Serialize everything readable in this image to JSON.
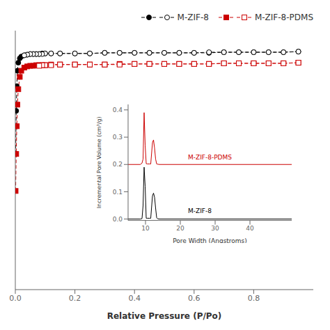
{
  "chart_data": [
    {
      "type": "line",
      "xlabel": "Relative Pressure (P/Po)",
      "xlim": [
        0,
        1.0
      ],
      "xticks": [
        {
          "value": 0,
          "label": "0.0"
        },
        0.2,
        0.4,
        0.6,
        0.8
      ],
      "ylim": [
        0,
        420
      ],
      "tick_labels": "x",
      "legend": "upper right",
      "series": [
        {
          "name": "M-ZIF-8",
          "color": "#000000",
          "marker": "circle",
          "line_style": "dashed",
          "x": [
            0.001,
            0.003,
            0.005,
            0.007,
            0.01,
            0.015,
            0.02,
            0.03,
            0.04,
            0.05,
            0.06,
            0.07,
            0.08,
            0.09,
            0.1,
            0.12,
            0.15,
            0.2,
            0.25,
            0.3,
            0.35,
            0.4,
            0.45,
            0.5,
            0.55,
            0.6,
            0.65,
            0.7,
            0.75,
            0.8,
            0.85,
            0.9,
            0.95
          ],
          "values": [
            220,
            290,
            330,
            355,
            368,
            375,
            378,
            380,
            381,
            382,
            382,
            382,
            382,
            383,
            383,
            383,
            383,
            383,
            383,
            384,
            384,
            384,
            384,
            384,
            384,
            384,
            384,
            385,
            385,
            385,
            385,
            385,
            386
          ]
        },
        {
          "name": "M-ZIF-8",
          "color": "#000000",
          "marker": "open-circle",
          "line_style": "dashed",
          "x": [
            0.95,
            0.9,
            0.85,
            0.8,
            0.75,
            0.7,
            0.65,
            0.6,
            0.55,
            0.5,
            0.45,
            0.4,
            0.35,
            0.3,
            0.25,
            0.2,
            0.15,
            0.12,
            0.1,
            0.09,
            0.08,
            0.07,
            0.06,
            0.05,
            0.04,
            0.03
          ],
          "values": [
            386,
            385,
            385,
            385,
            385,
            385,
            385,
            384,
            384,
            384,
            384,
            384,
            384,
            384,
            383,
            383,
            383,
            383,
            383,
            382,
            382,
            382,
            382,
            382,
            381,
            380
          ]
        },
        {
          "name": "M-ZIF-8-PDMS",
          "color": "#cc0000",
          "marker": "square",
          "line_style": "dashed",
          "x": [
            0.001,
            0.003,
            0.005,
            0.007,
            0.01,
            0.015,
            0.02,
            0.03,
            0.04,
            0.05,
            0.06,
            0.07,
            0.08,
            0.09,
            0.1,
            0.12,
            0.15,
            0.2,
            0.25,
            0.3,
            0.35,
            0.4,
            0.45,
            0.5,
            0.55,
            0.6,
            0.65,
            0.7,
            0.75,
            0.8,
            0.85,
            0.9,
            0.95
          ],
          "values": [
            160,
            220,
            265,
            300,
            325,
            345,
            355,
            360,
            362,
            363,
            363,
            364,
            364,
            364,
            364,
            365,
            365,
            365,
            365,
            365,
            366,
            366,
            366,
            366,
            366,
            366,
            366,
            367,
            367,
            367,
            367,
            367,
            368
          ]
        },
        {
          "name": "M-ZIF-8-PDMS",
          "color": "#cc0000",
          "marker": "open-square",
          "line_style": "dashed",
          "x": [
            0.95,
            0.9,
            0.85,
            0.8,
            0.75,
            0.7,
            0.65,
            0.6,
            0.55,
            0.5,
            0.45,
            0.4,
            0.35,
            0.3,
            0.25,
            0.2,
            0.15,
            0.12,
            0.1,
            0.09,
            0.08
          ],
          "values": [
            368,
            367,
            367,
            367,
            367,
            367,
            366,
            366,
            366,
            366,
            366,
            366,
            365,
            365,
            365,
            365,
            365,
            364,
            364,
            364,
            363
          ]
        }
      ]
    },
    {
      "type": "line",
      "xlabel": "Pore Width (Angstroms)",
      "ylabel": "Incremental Pore Volume (cm³/g)",
      "xlim": [
        5,
        52
      ],
      "ylim": [
        -0.005,
        0.42
      ],
      "xticks": [
        10,
        20,
        30,
        40
      ],
      "yticks": [
        {
          "value": 0,
          "label": "0.0"
        },
        0.1,
        0.2,
        0.3,
        0.4
      ],
      "series": [
        {
          "color": "#000000",
          "line_style": "solid",
          "x": [
            5.0,
            8.5,
            9.0,
            9.3,
            9.6,
            9.9,
            10.2,
            10.5,
            10.8,
            11.1,
            11.5,
            12.0,
            12.3,
            12.6,
            12.9,
            13.2,
            13.5,
            14.0,
            15.0,
            16.0,
            18.0,
            52.0
          ],
          "values": [
            0.0,
            0.0,
            0.002,
            0.05,
            0.19,
            0.12,
            0.003,
            0.003,
            0.003,
            0.003,
            0.003,
            0.085,
            0.095,
            0.08,
            0.04,
            0.005,
            0.001,
            0.0,
            0.0,
            0.0,
            0.0,
            0.0
          ]
        },
        {
          "color": "#cc0000",
          "line_style": "solid",
          "x": [
            5.0,
            8.5,
            9.0,
            9.3,
            9.6,
            9.9,
            10.2,
            10.5,
            10.8,
            11.1,
            11.5,
            12.0,
            12.3,
            12.6,
            12.9,
            13.2,
            13.5,
            14.0,
            15.0,
            16.0,
            18.0,
            52.0
          ],
          "values": [
            0.2,
            0.2,
            0.205,
            0.22,
            0.39,
            0.27,
            0.203,
            0.202,
            0.202,
            0.202,
            0.202,
            0.28,
            0.29,
            0.26,
            0.22,
            0.202,
            0.201,
            0.2,
            0.2,
            0.2,
            0.2,
            0.2
          ]
        }
      ],
      "annotations": [
        {
          "text": "M-ZIF-8-PDMS",
          "x": 22,
          "y": 0.215,
          "color": "#cc0000"
        },
        {
          "text": "M-ZIF-8",
          "x": 22,
          "y": 0.02,
          "color": "#000000"
        }
      ]
    }
  ]
}
